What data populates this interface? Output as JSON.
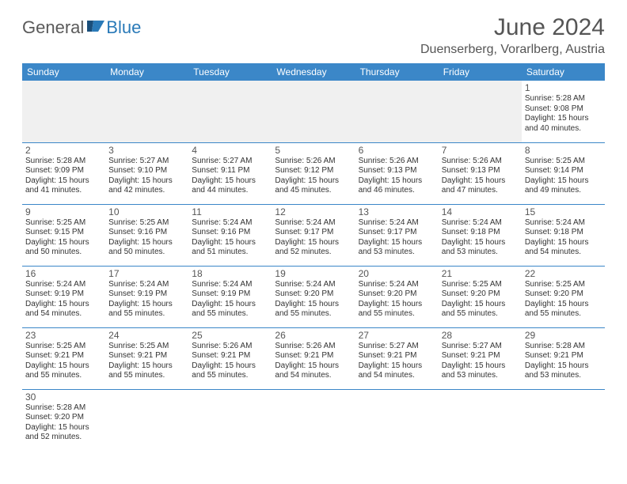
{
  "logo": {
    "text1": "General",
    "text2": "Blue"
  },
  "title": "June 2024",
  "subtitle": "Duenserberg, Vorarlberg, Austria",
  "colors": {
    "header_bg": "#3b87c8",
    "header_text": "#ffffff",
    "cell_border": "#3b87c8",
    "logo_blue": "#2a7ab8",
    "logo_gray": "#5a5a5a",
    "title_color": "#555555"
  },
  "dayHeaders": [
    "Sunday",
    "Monday",
    "Tuesday",
    "Wednesday",
    "Thursday",
    "Friday",
    "Saturday"
  ],
  "weeks": [
    [
      null,
      null,
      null,
      null,
      null,
      null,
      {
        "n": "1",
        "sr": "5:28 AM",
        "ss": "9:08 PM",
        "dl": "15 hours and 40 minutes."
      }
    ],
    [
      {
        "n": "2",
        "sr": "5:28 AM",
        "ss": "9:09 PM",
        "dl": "15 hours and 41 minutes."
      },
      {
        "n": "3",
        "sr": "5:27 AM",
        "ss": "9:10 PM",
        "dl": "15 hours and 42 minutes."
      },
      {
        "n": "4",
        "sr": "5:27 AM",
        "ss": "9:11 PM",
        "dl": "15 hours and 44 minutes."
      },
      {
        "n": "5",
        "sr": "5:26 AM",
        "ss": "9:12 PM",
        "dl": "15 hours and 45 minutes."
      },
      {
        "n": "6",
        "sr": "5:26 AM",
        "ss": "9:13 PM",
        "dl": "15 hours and 46 minutes."
      },
      {
        "n": "7",
        "sr": "5:26 AM",
        "ss": "9:13 PM",
        "dl": "15 hours and 47 minutes."
      },
      {
        "n": "8",
        "sr": "5:25 AM",
        "ss": "9:14 PM",
        "dl": "15 hours and 49 minutes."
      }
    ],
    [
      {
        "n": "9",
        "sr": "5:25 AM",
        "ss": "9:15 PM",
        "dl": "15 hours and 50 minutes."
      },
      {
        "n": "10",
        "sr": "5:25 AM",
        "ss": "9:16 PM",
        "dl": "15 hours and 50 minutes."
      },
      {
        "n": "11",
        "sr": "5:24 AM",
        "ss": "9:16 PM",
        "dl": "15 hours and 51 minutes."
      },
      {
        "n": "12",
        "sr": "5:24 AM",
        "ss": "9:17 PM",
        "dl": "15 hours and 52 minutes."
      },
      {
        "n": "13",
        "sr": "5:24 AM",
        "ss": "9:17 PM",
        "dl": "15 hours and 53 minutes."
      },
      {
        "n": "14",
        "sr": "5:24 AM",
        "ss": "9:18 PM",
        "dl": "15 hours and 53 minutes."
      },
      {
        "n": "15",
        "sr": "5:24 AM",
        "ss": "9:18 PM",
        "dl": "15 hours and 54 minutes."
      }
    ],
    [
      {
        "n": "16",
        "sr": "5:24 AM",
        "ss": "9:19 PM",
        "dl": "15 hours and 54 minutes."
      },
      {
        "n": "17",
        "sr": "5:24 AM",
        "ss": "9:19 PM",
        "dl": "15 hours and 55 minutes."
      },
      {
        "n": "18",
        "sr": "5:24 AM",
        "ss": "9:19 PM",
        "dl": "15 hours and 55 minutes."
      },
      {
        "n": "19",
        "sr": "5:24 AM",
        "ss": "9:20 PM",
        "dl": "15 hours and 55 minutes."
      },
      {
        "n": "20",
        "sr": "5:24 AM",
        "ss": "9:20 PM",
        "dl": "15 hours and 55 minutes."
      },
      {
        "n": "21",
        "sr": "5:25 AM",
        "ss": "9:20 PM",
        "dl": "15 hours and 55 minutes."
      },
      {
        "n": "22",
        "sr": "5:25 AM",
        "ss": "9:20 PM",
        "dl": "15 hours and 55 minutes."
      }
    ],
    [
      {
        "n": "23",
        "sr": "5:25 AM",
        "ss": "9:21 PM",
        "dl": "15 hours and 55 minutes."
      },
      {
        "n": "24",
        "sr": "5:25 AM",
        "ss": "9:21 PM",
        "dl": "15 hours and 55 minutes."
      },
      {
        "n": "25",
        "sr": "5:26 AM",
        "ss": "9:21 PM",
        "dl": "15 hours and 55 minutes."
      },
      {
        "n": "26",
        "sr": "5:26 AM",
        "ss": "9:21 PM",
        "dl": "15 hours and 54 minutes."
      },
      {
        "n": "27",
        "sr": "5:27 AM",
        "ss": "9:21 PM",
        "dl": "15 hours and 54 minutes."
      },
      {
        "n": "28",
        "sr": "5:27 AM",
        "ss": "9:21 PM",
        "dl": "15 hours and 53 minutes."
      },
      {
        "n": "29",
        "sr": "5:28 AM",
        "ss": "9:21 PM",
        "dl": "15 hours and 53 minutes."
      }
    ],
    [
      {
        "n": "30",
        "sr": "5:28 AM",
        "ss": "9:20 PM",
        "dl": "15 hours and 52 minutes."
      },
      null,
      null,
      null,
      null,
      null,
      null
    ]
  ],
  "labels": {
    "sunrise": "Sunrise:",
    "sunset": "Sunset:",
    "daylight": "Daylight:"
  }
}
